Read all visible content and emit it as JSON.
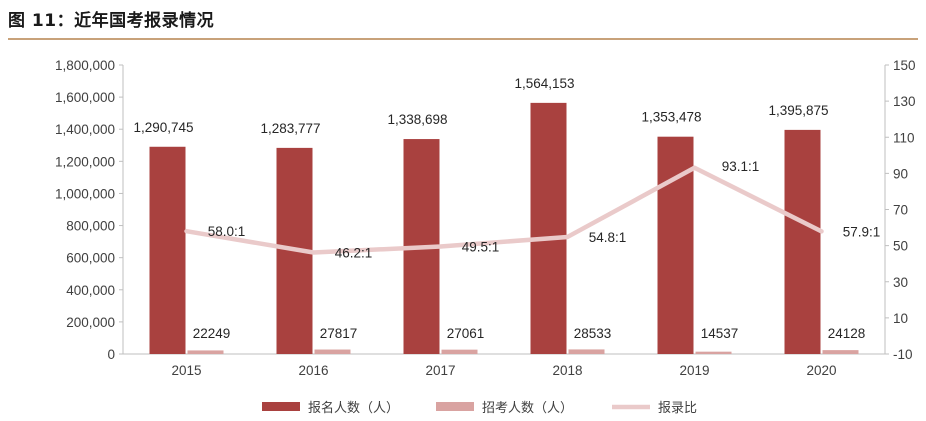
{
  "title": "图 11：近年国考报录情况",
  "colors": {
    "applicants": "#A9413F",
    "recruits": "#D9A3A1",
    "ratio": "#EACACA",
    "title_rule": "#C8A27A"
  },
  "chart_data": {
    "type": "bar",
    "categories": [
      "2015",
      "2016",
      "2017",
      "2018",
      "2019",
      "2020"
    ],
    "series": [
      {
        "name": "报名人数（人）",
        "kind": "bar",
        "axis": "left",
        "values": [
          1290745,
          1283777,
          1338698,
          1564153,
          1353478,
          1395875
        ],
        "labels": [
          "1,290,745",
          "1,283,777",
          "1,338,698",
          "1,564,153",
          "1,353,478",
          "1,395,875"
        ]
      },
      {
        "name": "招考人数（人）",
        "kind": "bar",
        "axis": "left",
        "values": [
          22249,
          27817,
          27061,
          28533,
          14537,
          24128
        ],
        "labels": [
          "22249",
          "27817",
          "27061",
          "28533",
          "14537",
          "24128"
        ]
      },
      {
        "name": "报录比",
        "kind": "line",
        "axis": "right",
        "values": [
          58.0,
          46.2,
          49.5,
          54.8,
          93.1,
          57.9
        ],
        "labels": [
          "58.0:1",
          "46.2:1",
          "49.5:1",
          "54.8:1",
          "93.1:1",
          "57.9:1"
        ]
      }
    ],
    "left_axis": {
      "ylim": [
        0,
        1800000
      ],
      "ticks": [
        0,
        200000,
        400000,
        600000,
        800000,
        1000000,
        1200000,
        1400000,
        1600000,
        1800000
      ],
      "tick_labels": [
        "0",
        "200,000",
        "400,000",
        "600,000",
        "800,000",
        "1,000,000",
        "1,200,000",
        "1,400,000",
        "1,600,000",
        "1,800,000"
      ]
    },
    "right_axis": {
      "ylim": [
        -10,
        150
      ],
      "ticks": [
        -10,
        10,
        30,
        50,
        70,
        90,
        110,
        130,
        150
      ],
      "tick_labels": [
        "-10",
        "10",
        "30",
        "50",
        "70",
        "90",
        "110",
        "130",
        "150"
      ]
    },
    "grid": false,
    "legend": "bottom"
  }
}
